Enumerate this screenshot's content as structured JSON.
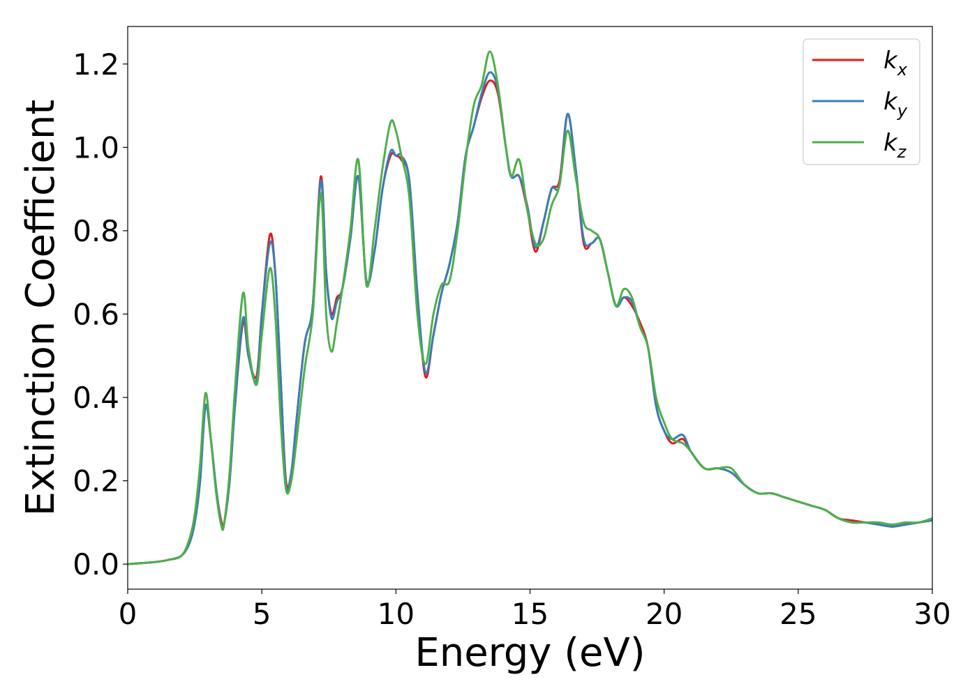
{
  "chart_data": {
    "type": "line",
    "xlabel": "Energy (eV)",
    "ylabel": "Extinction Coefficient",
    "xlim": [
      0,
      30
    ],
    "ylim": [
      -0.06,
      1.29
    ],
    "xticks": [
      0,
      5,
      10,
      15,
      20,
      25,
      30
    ],
    "xtick_labels": [
      "0",
      "5",
      "10",
      "15",
      "20",
      "25",
      "30"
    ],
    "yticks": [
      0.0,
      0.2,
      0.4,
      0.6,
      0.8,
      1.0,
      1.2
    ],
    "ytick_labels": [
      "0.0",
      "0.2",
      "0.4",
      "0.6",
      "0.8",
      "1.0",
      "1.2"
    ],
    "grid": false,
    "legend_position": "top-right",
    "x": [
      0.0,
      1.0,
      1.5,
      2.0,
      2.3,
      2.5,
      2.7,
      2.9,
      3.1,
      3.3,
      3.5,
      3.6,
      3.8,
      4.0,
      4.3,
      4.5,
      4.8,
      5.0,
      5.3,
      5.5,
      5.7,
      5.9,
      6.1,
      6.3,
      6.6,
      6.9,
      7.2,
      7.4,
      7.6,
      7.8,
      8.0,
      8.3,
      8.6,
      8.9,
      9.2,
      9.5,
      9.8,
      10.0,
      10.2,
      10.5,
      10.8,
      11.1,
      11.4,
      11.7,
      12.0,
      12.3,
      12.6,
      12.9,
      13.2,
      13.5,
      13.8,
      14.1,
      14.3,
      14.6,
      14.9,
      15.2,
      15.5,
      15.8,
      16.1,
      16.4,
      16.7,
      17.0,
      17.3,
      17.6,
      17.9,
      18.2,
      18.5,
      18.8,
      19.1,
      19.4,
      19.7,
      20.0,
      20.3,
      20.7,
      21.0,
      21.5,
      22.0,
      22.5,
      23.0,
      23.5,
      24.0,
      24.5,
      25.0,
      25.5,
      26.0,
      26.5,
      27.0,
      27.5,
      28.0,
      28.5,
      29.0,
      29.5,
      30.0
    ],
    "series": [
      {
        "name": "k_x",
        "color": "#e41a1c",
        "values": [
          0.0,
          0.005,
          0.01,
          0.02,
          0.05,
          0.1,
          0.2,
          0.38,
          0.3,
          0.18,
          0.1,
          0.1,
          0.2,
          0.38,
          0.58,
          0.5,
          0.45,
          0.6,
          0.79,
          0.7,
          0.45,
          0.2,
          0.22,
          0.35,
          0.53,
          0.62,
          0.93,
          0.7,
          0.6,
          0.64,
          0.66,
          0.78,
          0.93,
          0.68,
          0.75,
          0.9,
          0.98,
          0.98,
          0.97,
          0.92,
          0.65,
          0.45,
          0.55,
          0.65,
          0.72,
          0.82,
          0.98,
          1.05,
          1.12,
          1.16,
          1.13,
          1.0,
          0.93,
          0.93,
          0.85,
          0.75,
          0.82,
          0.9,
          0.92,
          1.08,
          0.95,
          0.77,
          0.77,
          0.78,
          0.7,
          0.62,
          0.64,
          0.62,
          0.58,
          0.52,
          0.38,
          0.32,
          0.29,
          0.3,
          0.27,
          0.23,
          0.23,
          0.22,
          0.19,
          0.17,
          0.17,
          0.16,
          0.15,
          0.14,
          0.13,
          0.11,
          0.105,
          0.1,
          0.095,
          0.09,
          0.095,
          0.1,
          0.105
        ]
      },
      {
        "name": "k_y",
        "color": "#377eb8",
        "values": [
          0.0,
          0.005,
          0.01,
          0.02,
          0.05,
          0.1,
          0.2,
          0.38,
          0.3,
          0.18,
          0.09,
          0.1,
          0.2,
          0.38,
          0.59,
          0.5,
          0.44,
          0.6,
          0.77,
          0.7,
          0.45,
          0.19,
          0.22,
          0.35,
          0.53,
          0.62,
          0.92,
          0.7,
          0.59,
          0.63,
          0.66,
          0.78,
          0.93,
          0.68,
          0.75,
          0.9,
          0.99,
          0.98,
          0.98,
          0.92,
          0.65,
          0.46,
          0.55,
          0.65,
          0.72,
          0.82,
          0.98,
          1.05,
          1.13,
          1.18,
          1.14,
          1.0,
          0.93,
          0.93,
          0.86,
          0.76,
          0.82,
          0.9,
          0.91,
          1.08,
          0.95,
          0.78,
          0.77,
          0.78,
          0.7,
          0.62,
          0.64,
          0.63,
          0.57,
          0.52,
          0.38,
          0.32,
          0.3,
          0.31,
          0.27,
          0.23,
          0.23,
          0.22,
          0.19,
          0.17,
          0.17,
          0.16,
          0.15,
          0.14,
          0.13,
          0.11,
          0.1,
          0.1,
          0.095,
          0.09,
          0.095,
          0.1,
          0.105
        ]
      },
      {
        "name": "k_z",
        "color": "#4daf4a",
        "values": [
          0.0,
          0.005,
          0.01,
          0.02,
          0.06,
          0.12,
          0.24,
          0.41,
          0.3,
          0.17,
          0.09,
          0.1,
          0.22,
          0.42,
          0.65,
          0.52,
          0.43,
          0.55,
          0.71,
          0.6,
          0.35,
          0.18,
          0.2,
          0.3,
          0.47,
          0.6,
          0.89,
          0.6,
          0.51,
          0.58,
          0.66,
          0.8,
          0.97,
          0.67,
          0.8,
          0.95,
          1.06,
          1.04,
          0.98,
          0.88,
          0.6,
          0.48,
          0.6,
          0.67,
          0.68,
          0.8,
          0.97,
          1.1,
          1.15,
          1.23,
          1.15,
          1.0,
          0.93,
          0.97,
          0.85,
          0.77,
          0.78,
          0.86,
          0.91,
          1.04,
          0.93,
          0.82,
          0.8,
          0.78,
          0.7,
          0.62,
          0.66,
          0.64,
          0.57,
          0.52,
          0.4,
          0.34,
          0.3,
          0.29,
          0.27,
          0.23,
          0.23,
          0.23,
          0.19,
          0.17,
          0.17,
          0.16,
          0.15,
          0.14,
          0.13,
          0.11,
          0.1,
          0.1,
          0.1,
          0.095,
          0.1,
          0.1,
          0.11
        ]
      }
    ]
  }
}
